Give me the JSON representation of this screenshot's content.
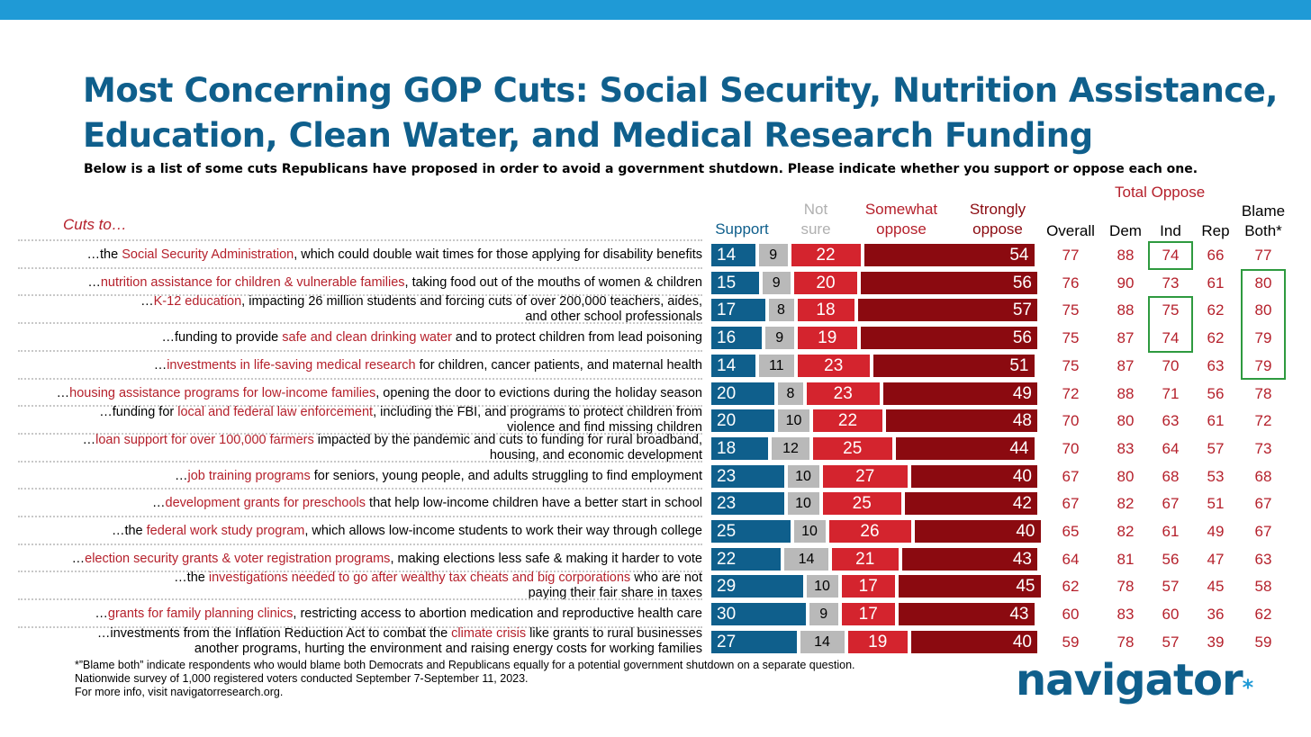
{
  "title_line1": "Most Concerning GOP Cuts: Social Security, Nutrition Assistance,",
  "title_line2": "Education, Clean Water, and Medical Research Funding",
  "subtitle": "Below is a list of some cuts Republicans have proposed in order to avoid a government shutdown. Please indicate whether you support or oppose each one.",
  "total_oppose_label": "Total Oppose",
  "cuts_to_label": "Cuts to…",
  "headers": {
    "support": "Support",
    "not_sure": [
      "Not",
      "sure"
    ],
    "somewhat": [
      "Somewhat",
      "oppose"
    ],
    "strongly": [
      "Strongly",
      "oppose"
    ],
    "overall": "Overall",
    "dem": "Dem",
    "ind": "Ind",
    "rep": "Rep",
    "blame": [
      "Blame",
      "Both*"
    ]
  },
  "colors": {
    "support": "#0f5f8c",
    "not_sure": "#b9b9b9",
    "somewhat": "#d4242e",
    "strongly": "#8b0a10",
    "highlight_box": "#2e9a3f",
    "accent_red": "#b5202b",
    "top_bar": "#1f9ad6"
  },
  "rows": [
    {
      "label": [
        {
          "t": "…the "
        },
        {
          "t": "Social Security Administration",
          "h": true
        },
        {
          "t": ", which could double wait times for those applying for disability benefits"
        }
      ]
    },
    {
      "label": [
        {
          "t": "…"
        },
        {
          "t": "nutrition assistance for children & vulnerable families",
          "h": true
        },
        {
          "t": ", taking food out of the mouths of women & children"
        }
      ]
    },
    {
      "label": [
        {
          "t": "…"
        },
        {
          "t": "K-12 education",
          "h": true
        },
        {
          "t": ", impacting 26 million students and forcing cuts of over 200,000 teachers, aides,"
        },
        {
          "br": true
        },
        {
          "t": "and other school professionals"
        }
      ]
    },
    {
      "label": [
        {
          "t": "…funding to provide "
        },
        {
          "t": "safe and clean drinking water",
          "h": true
        },
        {
          "t": " and to protect children from lead poisoning"
        }
      ]
    },
    {
      "label": [
        {
          "t": "…"
        },
        {
          "t": "investments in life-saving medical research",
          "h": true
        },
        {
          "t": " for children, cancer patients, and maternal health"
        }
      ]
    },
    {
      "label": [
        {
          "t": "…"
        },
        {
          "t": "housing assistance programs for low-income families",
          "h": true
        },
        {
          "t": ", opening the door to evictions during the holiday season"
        }
      ]
    },
    {
      "label": [
        {
          "t": "…funding for "
        },
        {
          "t": "local and federal law enforcement",
          "h": true
        },
        {
          "t": ", including the FBI, and programs to protect children from"
        },
        {
          "br": true
        },
        {
          "t": "violence and find missing children"
        }
      ]
    },
    {
      "label": [
        {
          "t": "…"
        },
        {
          "t": "loan support for over 100,000 farmers",
          "h": true
        },
        {
          "t": " impacted by the pandemic and cuts to funding for rural broadband,"
        },
        {
          "br": true
        },
        {
          "t": "housing, and economic development"
        }
      ]
    },
    {
      "label": [
        {
          "t": "…"
        },
        {
          "t": "job training programs",
          "h": true
        },
        {
          "t": " for seniors, young people, and adults struggling to find employment"
        }
      ]
    },
    {
      "label": [
        {
          "t": "…"
        },
        {
          "t": "development grants for preschools",
          "h": true
        },
        {
          "t": " that help low-income children have a better start in school"
        }
      ]
    },
    {
      "label": [
        {
          "t": "…the "
        },
        {
          "t": "federal work study program",
          "h": true
        },
        {
          "t": ", which allows low-income students to work their way through college"
        }
      ]
    },
    {
      "label": [
        {
          "t": "…"
        },
        {
          "t": "election security grants & voter registration programs",
          "h": true
        },
        {
          "t": ", making elections less safe & making it harder to vote"
        }
      ]
    },
    {
      "label": [
        {
          "t": "…the "
        },
        {
          "t": "investigations needed to go after wealthy tax cheats and big corporations",
          "h": true
        },
        {
          "t": " who are not"
        },
        {
          "br": true
        },
        {
          "t": "paying their fair share in taxes"
        }
      ]
    },
    {
      "label": [
        {
          "t": "…"
        },
        {
          "t": "grants for family planning clinics",
          "h": true
        },
        {
          "t": ", restricting access to abortion medication and reproductive health care"
        }
      ]
    },
    {
      "label": [
        {
          "t": "…investments from the Inflation Reduction Act to combat the "
        },
        {
          "t": "climate crisis",
          "h": true
        },
        {
          "t": " like grants to rural businesses"
        },
        {
          "br": true
        },
        {
          "t": "another programs, hurting the environment and raising energy costs for working families"
        }
      ]
    }
  ],
  "chart_data": {
    "type": "bar",
    "orientation": "horizontal",
    "stacked": true,
    "categories": [
      "Social Security Administration",
      "nutrition assistance for children & vulnerable families",
      "K-12 education",
      "safe and clean drinking water",
      "investments in life-saving medical research",
      "housing assistance programs for low-income families",
      "local and federal law enforcement",
      "loan support for over 100,000 farmers",
      "job training programs",
      "development grants for preschools",
      "federal work study program",
      "election security grants & voter registration programs",
      "investigations needed to go after wealthy tax cheats and big corporations",
      "grants for family planning clinics",
      "climate crisis"
    ],
    "series": [
      {
        "name": "Support",
        "values": [
          14,
          15,
          17,
          16,
          14,
          20,
          20,
          18,
          23,
          23,
          25,
          22,
          29,
          30,
          27
        ]
      },
      {
        "name": "Not sure",
        "values": [
          9,
          9,
          8,
          9,
          11,
          8,
          10,
          12,
          10,
          10,
          10,
          14,
          10,
          9,
          14
        ]
      },
      {
        "name": "Somewhat oppose",
        "values": [
          22,
          20,
          18,
          19,
          23,
          23,
          22,
          25,
          27,
          25,
          26,
          21,
          17,
          17,
          19
        ]
      },
      {
        "name": "Strongly oppose",
        "values": [
          54,
          56,
          57,
          56,
          51,
          49,
          48,
          44,
          40,
          42,
          40,
          43,
          45,
          43,
          40
        ]
      }
    ],
    "total_oppose": {
      "overall": [
        77,
        76,
        75,
        75,
        75,
        72,
        70,
        70,
        67,
        67,
        65,
        64,
        62,
        60,
        59
      ],
      "dem": [
        88,
        90,
        88,
        87,
        87,
        88,
        80,
        83,
        80,
        82,
        82,
        81,
        78,
        83,
        78
      ],
      "ind": [
        74,
        73,
        75,
        74,
        70,
        71,
        63,
        64,
        68,
        67,
        61,
        56,
        57,
        60,
        57
      ],
      "rep": [
        66,
        61,
        62,
        62,
        63,
        56,
        61,
        57,
        53,
        51,
        49,
        47,
        45,
        36,
        39
      ],
      "blame_both": [
        77,
        80,
        80,
        79,
        79,
        78,
        72,
        73,
        68,
        67,
        67,
        63,
        58,
        62,
        59
      ]
    },
    "highlighted": {
      "ind": [
        0,
        2,
        3
      ],
      "blame_both": [
        1,
        2,
        3,
        4
      ]
    }
  },
  "footnotes": [
    "*”Blame both” indicate respondents who would blame both Democrats and Republicans equally for a potential government shutdown on a separate question.",
    "Nationwide survey of 1,000 registered voters conducted September 7-September 11, 2023.",
    "For more info, visit navigatorresearch.org."
  ],
  "logo_text": "navigator",
  "logo_mark": "*"
}
